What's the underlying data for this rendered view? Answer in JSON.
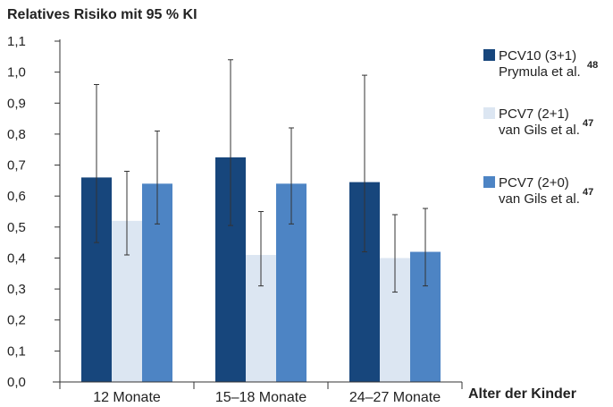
{
  "chart_data": {
    "type": "bar",
    "title": "Relatives Risiko mit 95 % KI",
    "xlabel": "Alter der Kinder",
    "ylabel": "",
    "ylim": [
      0,
      1.1
    ],
    "yticks": [
      "0,0",
      "0,1",
      "0,2",
      "0,3",
      "0,4",
      "0,5",
      "0,6",
      "0,7",
      "0,8",
      "0,9",
      "1,0",
      "1,1"
    ],
    "categories": [
      "12 Monate",
      "15–18 Monate",
      "24–27 Monate"
    ],
    "grid": false,
    "legend_position": "right",
    "series": [
      {
        "name_line1": "PCV10 (3+1)",
        "name_line2": "Prymula et al.",
        "ref": "48",
        "color": "#17467c",
        "values": [
          0.66,
          0.725,
          0.645
        ],
        "ci_low": [
          0.45,
          0.505,
          0.42
        ],
        "ci_high": [
          0.96,
          1.04,
          0.99
        ]
      },
      {
        "name_line1": "PCV7 (2+1)",
        "name_line2": "van Gils et al.",
        "ref": "47",
        "color": "#dce6f2",
        "values": [
          0.52,
          0.41,
          0.4
        ],
        "ci_low": [
          0.41,
          0.31,
          0.29
        ],
        "ci_high": [
          0.68,
          0.55,
          0.54
        ]
      },
      {
        "name_line1": "PCV7 (2+0)",
        "name_line2": "van Gils et al.",
        "ref": "47",
        "color": "#4d84c4",
        "values": [
          0.64,
          0.64,
          0.42
        ],
        "ci_low": [
          0.51,
          0.51,
          0.31
        ],
        "ci_high": [
          0.81,
          0.82,
          0.56
        ]
      }
    ]
  }
}
